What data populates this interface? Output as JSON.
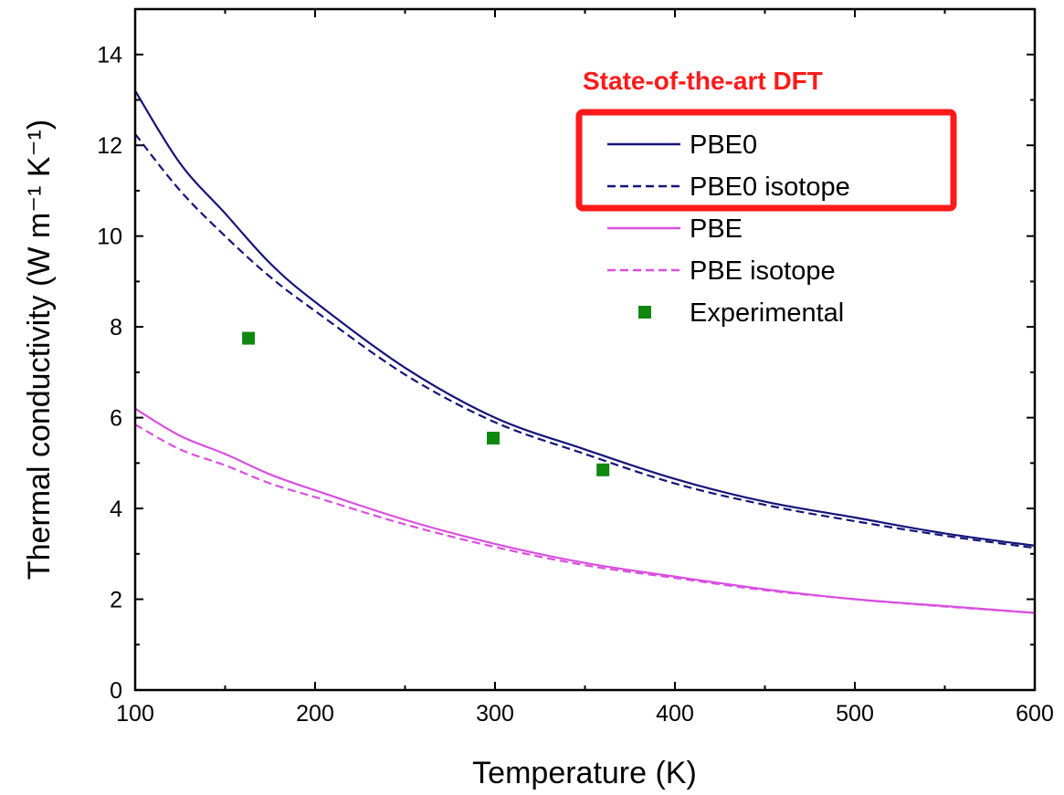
{
  "chart_data": {
    "type": "line",
    "xlabel": "Temperature (K)",
    "ylabel": "Thermal conductivity  (W m⁻¹ K⁻¹)",
    "xlim": [
      100,
      600
    ],
    "ylim": [
      0,
      15
    ],
    "xticks": [
      100,
      200,
      300,
      400,
      500,
      600
    ],
    "yticks": [
      0,
      2,
      4,
      6,
      8,
      10,
      12,
      14
    ],
    "grid": false,
    "legend_placement": "top-right",
    "annotation": {
      "text": "State-of-the-art DFT",
      "color": "#ff1a1a",
      "highlights": [
        "PBE0",
        "PBE0 isotope"
      ]
    },
    "series": [
      {
        "name": "PBE0",
        "style": "solid",
        "color": "#14147a",
        "x": [
          100,
          125,
          150,
          175,
          200,
          250,
          300,
          350,
          400,
          450,
          500,
          550,
          600
        ],
        "y": [
          13.2,
          11.6,
          10.5,
          9.4,
          8.55,
          7.1,
          6.0,
          5.3,
          4.65,
          4.15,
          3.8,
          3.45,
          3.18
        ]
      },
      {
        "name": "PBE0 isotope",
        "style": "dashed",
        "color": "#14147a",
        "x": [
          100,
          125,
          150,
          175,
          200,
          250,
          300,
          350,
          400,
          450,
          500,
          550,
          600
        ],
        "y": [
          12.25,
          11.0,
          10.0,
          9.1,
          8.35,
          6.95,
          5.9,
          5.2,
          4.55,
          4.08,
          3.72,
          3.4,
          3.13
        ]
      },
      {
        "name": "PBE",
        "style": "solid",
        "color": "#d94fe0",
        "x": [
          100,
          125,
          150,
          175,
          200,
          250,
          300,
          350,
          400,
          450,
          500,
          550,
          600
        ],
        "y": [
          6.2,
          5.6,
          5.2,
          4.75,
          4.4,
          3.75,
          3.22,
          2.8,
          2.5,
          2.22,
          2.0,
          1.85,
          1.7
        ]
      },
      {
        "name": "PBE isotope",
        "style": "dashed",
        "color": "#d94fe0",
        "x": [
          100,
          125,
          150,
          175,
          200,
          250,
          300,
          350,
          400,
          450,
          500,
          550,
          600
        ],
        "y": [
          5.85,
          5.3,
          4.95,
          4.55,
          4.25,
          3.65,
          3.15,
          2.75,
          2.47,
          2.2,
          2.0,
          1.84,
          1.7
        ]
      },
      {
        "name": "Experimental",
        "style": "markers",
        "color": "#108810",
        "x": [
          163,
          299,
          360
        ],
        "y": [
          7.75,
          5.55,
          4.85
        ]
      }
    ]
  }
}
